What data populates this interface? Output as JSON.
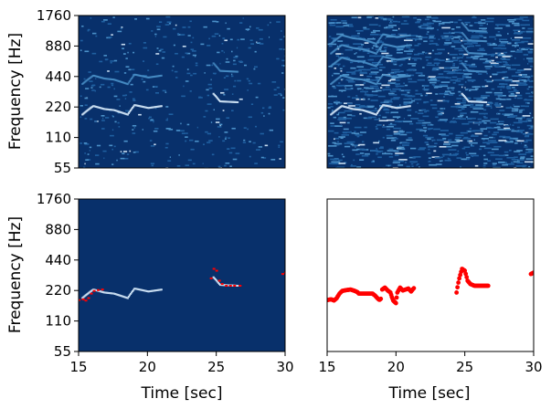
{
  "figure": {
    "ylabel": "Frequency [Hz]",
    "xlabel": "Time [sec]"
  },
  "colors": {
    "background_dark": "#08306b",
    "line_mid": "#4a90c8",
    "line_bright": "#c6dbef",
    "f0_marker": "#ff0000",
    "frame": "#000000"
  },
  "chart_data": [
    {
      "type": "heatmap",
      "panel": "top-left",
      "description_scale": "log2 frequency",
      "ylabel": "Frequency [Hz]",
      "xlabel": "",
      "ylim": [
        55,
        1760
      ],
      "yticks": [
        55,
        110,
        220,
        440,
        880,
        1760
      ],
      "ytick_labels": [
        "55",
        "110",
        "220",
        "440",
        "880",
        "1760"
      ],
      "xlim": [
        15,
        30
      ],
      "xticks": [],
      "density": "sparse",
      "harmonic_track": [
        [
          15.2,
          185
        ],
        [
          16.0,
          225
        ],
        [
          16.8,
          210
        ],
        [
          17.5,
          205
        ],
        [
          18.5,
          185
        ],
        [
          19.0,
          230
        ],
        [
          20.0,
          215
        ],
        [
          21.0,
          225
        ],
        [
          24.7,
          300
        ],
        [
          25.2,
          250
        ],
        [
          26.5,
          245
        ],
        [
          29.8,
          320
        ]
      ]
    },
    {
      "type": "heatmap",
      "panel": "top-right",
      "ylim": [
        55,
        1760
      ],
      "xlim": [
        15,
        30
      ],
      "xticks": [],
      "yticks": [],
      "density": "dense",
      "harmonic_track": [
        [
          15.2,
          185
        ],
        [
          16.0,
          225
        ],
        [
          16.8,
          210
        ],
        [
          17.5,
          205
        ],
        [
          18.5,
          185
        ],
        [
          19.0,
          230
        ],
        [
          20.0,
          215
        ],
        [
          21.0,
          225
        ],
        [
          24.7,
          300
        ],
        [
          25.2,
          250
        ],
        [
          26.5,
          245
        ],
        [
          29.8,
          320
        ]
      ]
    },
    {
      "type": "heatmap",
      "panel": "bottom-left",
      "ylabel": "Frequency [Hz]",
      "xlabel": "Time [sec]",
      "ylim": [
        55,
        1760
      ],
      "yticks": [
        55,
        110,
        220,
        440,
        880,
        1760
      ],
      "ytick_labels": [
        "55",
        "110",
        "220",
        "440",
        "880",
        "1760"
      ],
      "xlim": [
        15,
        30
      ],
      "xticks": [
        15,
        20,
        25,
        30
      ],
      "xtick_labels": [
        "15",
        "20",
        "25",
        "30"
      ],
      "density": "masked",
      "harmonic_track": [
        [
          15.2,
          185
        ],
        [
          16.0,
          225
        ],
        [
          16.8,
          210
        ],
        [
          17.5,
          205
        ],
        [
          18.5,
          185
        ],
        [
          19.0,
          230
        ],
        [
          20.0,
          215
        ],
        [
          21.0,
          225
        ],
        [
          24.7,
          300
        ],
        [
          25.2,
          250
        ],
        [
          26.5,
          245
        ],
        [
          29.8,
          320
        ]
      ],
      "f0_overlay": true
    },
    {
      "type": "scatter",
      "panel": "bottom-right",
      "xlabel": "Time [sec]",
      "ylim": [
        55,
        1760
      ],
      "yticks": [],
      "xlim": [
        15,
        30
      ],
      "xticks": [
        15,
        20,
        25,
        30
      ],
      "xtick_labels": [
        "15",
        "20",
        "25",
        "30"
      ],
      "color": "#ff0000",
      "segments": [
        [
          [
            15.0,
            177
          ],
          [
            15.3,
            180
          ],
          [
            15.5,
            175
          ],
          [
            15.7,
            185
          ],
          [
            15.9,
            205
          ],
          [
            16.1,
            218
          ],
          [
            16.4,
            222
          ],
          [
            16.7,
            225
          ],
          [
            17.0,
            218
          ],
          [
            17.2,
            212
          ],
          [
            17.3,
            205
          ],
          [
            17.8,
            205
          ],
          [
            18.3,
            205
          ],
          [
            18.5,
            195
          ],
          [
            18.6,
            188
          ],
          [
            18.7,
            182
          ],
          [
            18.8,
            178
          ],
          [
            18.9,
            182
          ]
        ],
        [
          [
            19.0,
            225
          ],
          [
            19.2,
            235
          ],
          [
            19.4,
            220
          ],
          [
            19.6,
            210
          ],
          [
            19.7,
            190
          ],
          [
            19.8,
            175
          ],
          [
            19.9,
            170
          ],
          [
            20.0,
            165
          ],
          [
            20.1,
            210
          ],
          [
            20.3,
            235
          ],
          [
            20.5,
            220
          ],
          [
            20.7,
            225
          ],
          [
            20.9,
            230
          ],
          [
            21.1,
            215
          ],
          [
            21.3,
            232
          ]
        ],
        [
          [
            24.4,
            210
          ],
          [
            24.6,
            290
          ],
          [
            24.8,
            360
          ],
          [
            25.0,
            345
          ],
          [
            25.2,
            275
          ],
          [
            25.4,
            255
          ],
          [
            25.7,
            245
          ],
          [
            26.0,
            245
          ],
          [
            26.3,
            245
          ],
          [
            26.7,
            245
          ]
        ],
        [
          [
            29.8,
            320
          ],
          [
            30.0,
            330
          ]
        ]
      ]
    }
  ]
}
